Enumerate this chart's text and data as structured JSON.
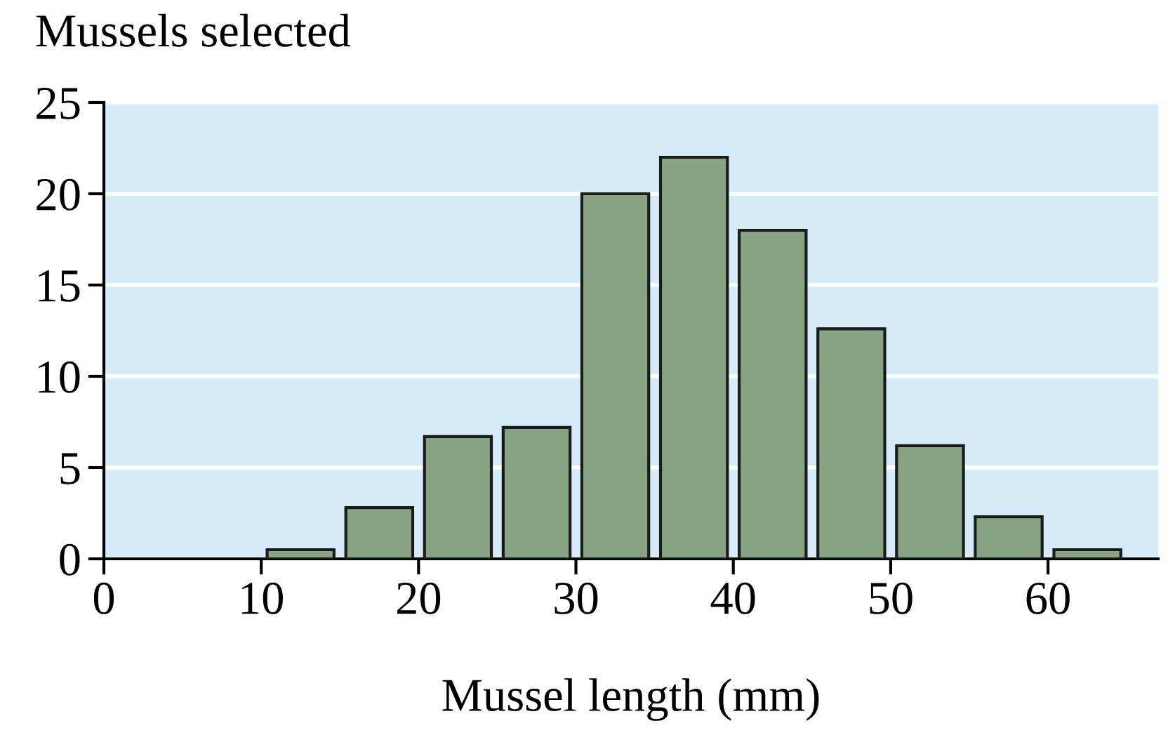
{
  "chart_data": {
    "type": "histogram",
    "xlabel": "Mussel length (mm)",
    "ylabel": "Mussels selected",
    "bins": [
      10,
      15,
      20,
      25,
      30,
      35,
      40,
      45,
      50,
      55,
      60,
      65
    ],
    "values": [
      0.5,
      2.8,
      6.7,
      7.2,
      20,
      22,
      18,
      12.6,
      6.2,
      2.3,
      0.5
    ],
    "color": "#87a585",
    "xlim": [
      0,
      67
    ],
    "xticks": [
      0,
      10,
      20,
      30,
      40,
      50,
      60
    ],
    "ylim": [
      0,
      25
    ],
    "yticks": [
      0,
      5,
      10,
      15,
      20,
      25
    ],
    "grid": "y"
  }
}
